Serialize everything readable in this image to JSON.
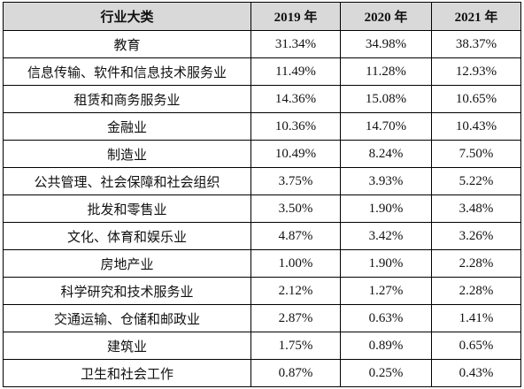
{
  "table": {
    "header": [
      "行业大类",
      "2019 年",
      "2020 年",
      "2021 年"
    ],
    "rows": [
      [
        "教育",
        "31.34%",
        "34.98%",
        "38.37%"
      ],
      [
        "信息传输、软件和信息技术服务业",
        "11.49%",
        "11.28%",
        "12.93%"
      ],
      [
        "租赁和商务服务业",
        "14.36%",
        "15.08%",
        "10.65%"
      ],
      [
        "金融业",
        "10.36%",
        "14.70%",
        "10.43%"
      ],
      [
        "制造业",
        "10.49%",
        "8.24%",
        "7.50%"
      ],
      [
        "公共管理、社会保障和社会组织",
        "3.75%",
        "3.93%",
        "5.22%"
      ],
      [
        "批发和零售业",
        "3.50%",
        "1.90%",
        "3.48%"
      ],
      [
        "文化、体育和娱乐业",
        "4.87%",
        "3.42%",
        "3.26%"
      ],
      [
        "房地产业",
        "1.00%",
        "1.90%",
        "2.28%"
      ],
      [
        "科学研究和技术服务业",
        "2.12%",
        "1.27%",
        "2.28%"
      ],
      [
        "交通运输、仓储和邮政业",
        "2.87%",
        "0.63%",
        "1.41%"
      ],
      [
        "建筑业",
        "1.75%",
        "0.89%",
        "0.65%"
      ],
      [
        "卫生和社会工作",
        "0.87%",
        "0.25%",
        "0.43%"
      ]
    ]
  }
}
